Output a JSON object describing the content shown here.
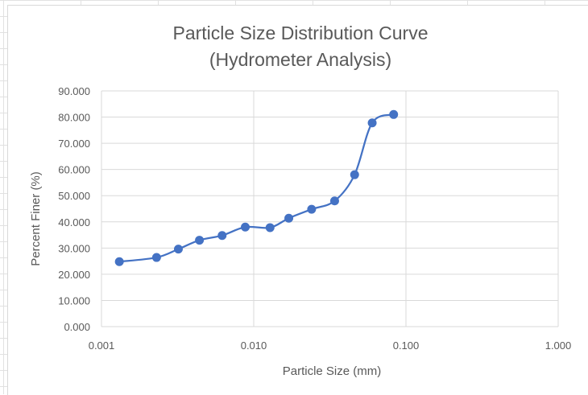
{
  "chart_data": {
    "type": "scatter",
    "title": [
      "Particle Size Distribution Curve",
      "(Hydrometer Analysis)"
    ],
    "xlabel": "Particle Size (mm)",
    "ylabel": "Percent Finer (%)",
    "xscale": "log",
    "xlim": [
      0.001,
      1.0
    ],
    "ylim": [
      0,
      90
    ],
    "x_ticks": [
      "0.001",
      "0.010",
      "0.100",
      "1.000"
    ],
    "y_ticks": [
      "0.000",
      "10.000",
      "20.000",
      "30.000",
      "40.000",
      "50.000",
      "60.000",
      "70.000",
      "80.000",
      "90.000"
    ],
    "grid": true,
    "legend": "none",
    "series": [
      {
        "color": "#4472c4",
        "line": "smooth",
        "marker": "circle",
        "x": [
          0.00131,
          0.0023,
          0.0032,
          0.0044,
          0.0062,
          0.0088,
          0.0128,
          0.017,
          0.024,
          0.034,
          0.046,
          0.06,
          0.083
        ],
        "y": [
          24.8,
          26.4,
          29.6,
          33.0,
          34.8,
          38.0,
          37.8,
          41.4,
          44.8,
          48.0,
          58.0,
          77.8,
          81.0
        ]
      }
    ]
  }
}
